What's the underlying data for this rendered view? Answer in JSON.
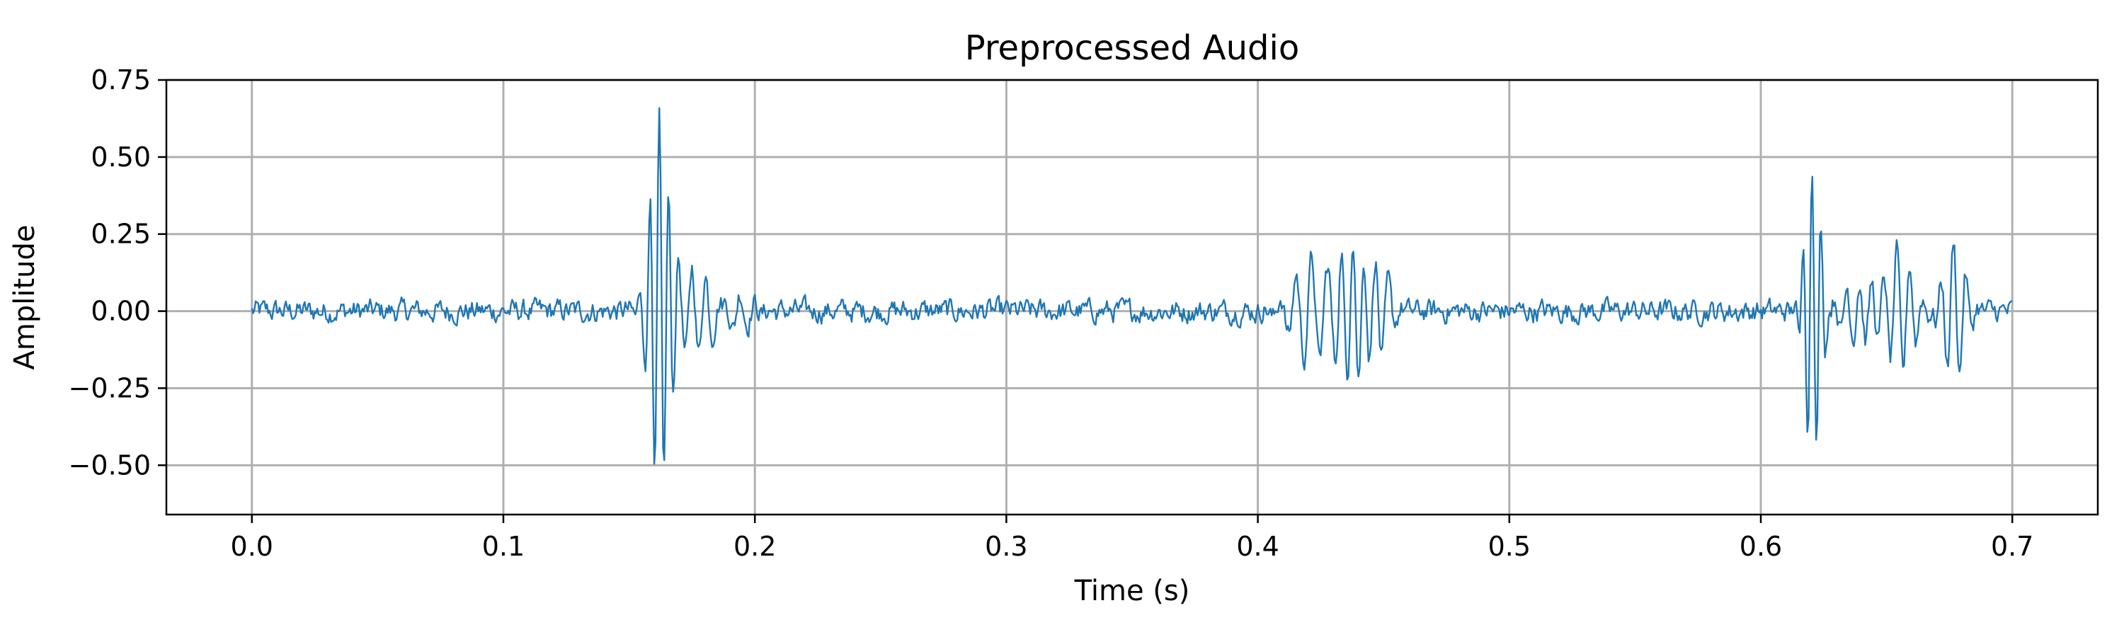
{
  "colors": {
    "series": "#1f77b4",
    "grid": "#b0b0b0",
    "axes": "#000000"
  },
  "chart_data": {
    "type": "line",
    "title": "Preprocessed Audio",
    "xlabel": "Time (s)",
    "ylabel": "Amplitude",
    "xlim": [
      -0.034,
      0.734
    ],
    "ylim": [
      -0.66,
      0.75
    ],
    "grid": true,
    "x_ticks": [
      0.0,
      0.1,
      0.2,
      0.3,
      0.4,
      0.5,
      0.6,
      0.7
    ],
    "x_tick_labels": [
      "0.0",
      "0.1",
      "0.2",
      "0.3",
      "0.4",
      "0.5",
      "0.6",
      "0.7"
    ],
    "y_ticks": [
      -0.5,
      -0.25,
      0.0,
      0.25,
      0.5,
      0.75
    ],
    "y_tick_labels": [
      "−0.50",
      "−0.25",
      "0.00",
      "0.25",
      "0.50",
      "0.75"
    ],
    "series": [
      {
        "x_start": 0.0,
        "x_end": 0.7,
        "background_noise_amplitude": 0.03,
        "peaks": [
          {
            "x": 0.162,
            "y": 0.69
          },
          {
            "x": 0.158,
            "y": -0.59
          },
          {
            "x": 0.165,
            "y": -0.36
          },
          {
            "x": 0.181,
            "y": -0.23
          },
          {
            "x": 0.437,
            "y": 0.28
          },
          {
            "x": 0.4395,
            "y": -0.32
          },
          {
            "x": 0.4165,
            "y": -0.23
          },
          {
            "x": 0.6215,
            "y": 0.52
          },
          {
            "x": 0.6185,
            "y": -0.45
          },
          {
            "x": 0.6765,
            "y": 0.25
          },
          {
            "x": 0.6555,
            "y": -0.2
          }
        ]
      }
    ]
  }
}
